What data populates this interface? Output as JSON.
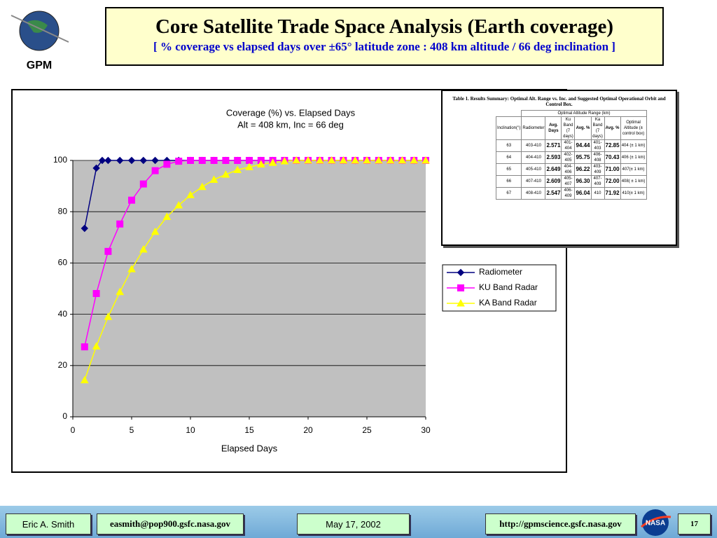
{
  "header": {
    "logo_text": "GPM",
    "title": "Core Satellite Trade Space Analysis (Earth coverage)",
    "subtitle": "[ % coverage vs elapsed days over ±65° latitude zone : 408 km altitude / 66 deg inclination ]"
  },
  "chart_data": {
    "type": "line",
    "title": "Coverage (%) vs. Elapsed Days",
    "subtitle": "Alt = 408 km, Inc = 66 deg",
    "x_label": "Elapsed Days",
    "xlim": [
      0,
      30
    ],
    "xticks": [
      0,
      5,
      10,
      15,
      20,
      25,
      30
    ],
    "ylim": [
      0,
      100
    ],
    "yticks": [
      0,
      20,
      40,
      60,
      80,
      100
    ],
    "grid": true,
    "legend": "right",
    "plot_background": "#c0c0c0",
    "series": [
      {
        "name": "Radiometer",
        "color": "#000080",
        "marker": "diamond",
        "x": [
          1,
          2,
          2.5,
          3,
          4,
          5,
          6,
          7,
          8,
          9,
          10,
          11,
          12,
          13,
          14,
          15,
          16,
          17,
          18,
          19,
          20,
          21,
          22,
          23,
          24,
          25,
          26,
          27,
          28,
          29,
          30
        ],
        "values": [
          73.5,
          97,
          100,
          100,
          100,
          100,
          100,
          100,
          100,
          100,
          100,
          100,
          100,
          100,
          100,
          100,
          100,
          100,
          100,
          100,
          100,
          100,
          100,
          100,
          100,
          100,
          100,
          100,
          100,
          100,
          100
        ]
      },
      {
        "name": "KU Band Radar",
        "color": "#ff00ff",
        "marker": "square",
        "x": [
          1,
          2,
          3,
          4,
          5,
          6,
          7,
          8,
          9,
          10,
          11,
          12,
          13,
          14,
          15,
          16,
          17,
          18,
          19,
          20,
          21,
          22,
          23,
          24,
          25,
          26,
          27,
          28,
          29,
          30
        ],
        "values": [
          27.3,
          48.1,
          64.5,
          75.2,
          84.5,
          90.8,
          96,
          98.5,
          99.7,
          100,
          100,
          100,
          100,
          100,
          100,
          100,
          100,
          100,
          100,
          100,
          100,
          100,
          100,
          100,
          100,
          100,
          100,
          100,
          100,
          100
        ]
      },
      {
        "name": "KA Band Radar",
        "color": "#ffff00",
        "marker": "triangle",
        "x": [
          1,
          2,
          3,
          4,
          5,
          6,
          7,
          8,
          9,
          10,
          11,
          12,
          13,
          14,
          15,
          16,
          17,
          18,
          19,
          20,
          21,
          22,
          23,
          24,
          25,
          26,
          27,
          28,
          29,
          30
        ],
        "values": [
          14.3,
          27.5,
          39,
          48.7,
          57.6,
          65.3,
          72.2,
          78,
          82.5,
          86.5,
          89.7,
          92.5,
          94.5,
          96.3,
          97.4,
          98.5,
          99.1,
          99.7,
          100,
          100,
          100,
          100,
          100,
          100,
          100,
          100,
          100,
          100,
          100,
          100
        ]
      }
    ]
  },
  "table": {
    "title": "Table 1. Results Summary: Optimal Alt. Range vs. Inc. and Suggested Optimal Operational Orbit and Control Box.",
    "group_header": "Optimal Altitude Range (km)",
    "headers": [
      "Inclination(°)",
      "Radiometer",
      "Avg. Days",
      "Ku Band (7 days)",
      "Avg. %",
      "Ka Band (7 days)",
      "Avg. %",
      "Optimal Altitude (± control box)"
    ],
    "rows": [
      [
        "63",
        "403-410",
        "2.571",
        "401-404",
        "94.44",
        "401-403",
        "72.85",
        "404 (± 1 km)"
      ],
      [
        "64",
        "404-410",
        "2.593",
        "402-405",
        "95.75",
        "406-408",
        "70.43",
        "406 (± 1 km)"
      ],
      [
        "65",
        "405-410",
        "2.649",
        "404-406",
        "96.22",
        "403-409",
        "71.00",
        "407(± 1 km)"
      ],
      [
        "66",
        "407-410",
        "2.609",
        "405-407",
        "96.30",
        "407-409",
        "72.00",
        "408( ± 1 km)"
      ],
      [
        "67",
        "408-410",
        "2.547",
        "406-409",
        "96.04",
        "410",
        "71.92",
        "410(± 1 km)"
      ]
    ]
  },
  "footer": {
    "author": "Eric A. Smith",
    "email": "easmith@pop900.gsfc.nasa.gov",
    "date": "May 17, 2002",
    "url": "http://gpmscience.gsfc.nasa.gov",
    "logo_text": "NASA",
    "page": "17"
  }
}
